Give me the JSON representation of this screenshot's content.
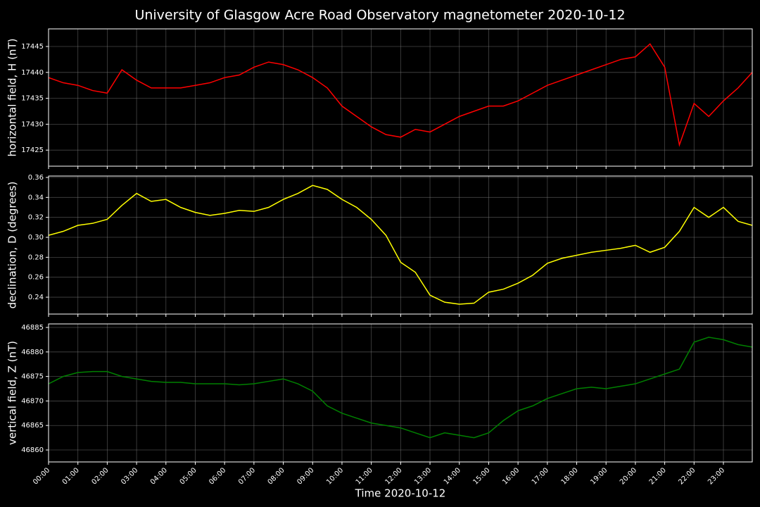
{
  "title": "University of Glasgow Acre Road Observatory magnetometer 2020-10-12",
  "chart_data": [
    {
      "type": "line",
      "ylabel": "horizontal field, H (nT)",
      "color": "#ff0000",
      "grid": true,
      "x": [
        "00:00",
        "00:30",
        "01:00",
        "01:30",
        "02:00",
        "02:30",
        "03:00",
        "03:30",
        "04:00",
        "04:30",
        "05:00",
        "05:30",
        "06:00",
        "06:30",
        "07:00",
        "07:30",
        "08:00",
        "08:30",
        "09:00",
        "09:30",
        "10:00",
        "10:30",
        "11:00",
        "11:30",
        "12:00",
        "12:30",
        "13:00",
        "13:30",
        "14:00",
        "14:30",
        "15:00",
        "15:30",
        "16:00",
        "16:30",
        "17:00",
        "17:30",
        "18:00",
        "18:30",
        "19:00",
        "19:30",
        "20:00",
        "20:30",
        "21:00",
        "21:30",
        "22:00",
        "22:30",
        "23:00",
        "23:30",
        "23:59"
      ],
      "values": [
        17439,
        17438,
        17437.5,
        17436.5,
        17436,
        17440.5,
        17438.5,
        17437,
        17437,
        17437,
        17437.5,
        17438,
        17439,
        17439.5,
        17441,
        17442,
        17441.5,
        17440.5,
        17439,
        17437,
        17433.5,
        17431.5,
        17429.5,
        17428,
        17427.5,
        17429,
        17428.5,
        17430,
        17431.5,
        17432.5,
        17433.5,
        17433.5,
        17434.5,
        17436,
        17437.5,
        17438.5,
        17439.5,
        17440.5,
        17441.5,
        17442.5,
        17443,
        17445.5,
        17441,
        17426,
        17434,
        17431.5,
        17434.5,
        17437,
        17440
      ],
      "ylim": [
        17421.9,
        17448.4
      ],
      "yticks": [
        17425,
        17430,
        17435,
        17440,
        17445
      ]
    },
    {
      "type": "line",
      "ylabel": "declination, D (degrees)",
      "color": "#ffff00",
      "grid": true,
      "x": [
        "00:00",
        "00:30",
        "01:00",
        "01:30",
        "02:00",
        "02:30",
        "03:00",
        "03:30",
        "04:00",
        "04:30",
        "05:00",
        "05:30",
        "06:00",
        "06:30",
        "07:00",
        "07:30",
        "08:00",
        "08:30",
        "09:00",
        "09:30",
        "10:00",
        "10:30",
        "11:00",
        "11:30",
        "12:00",
        "12:30",
        "13:00",
        "13:30",
        "14:00",
        "14:30",
        "15:00",
        "15:30",
        "16:00",
        "16:30",
        "17:00",
        "17:30",
        "18:00",
        "18:30",
        "19:00",
        "19:30",
        "20:00",
        "20:30",
        "21:00",
        "21:30",
        "22:00",
        "22:30",
        "23:00",
        "23:30",
        "23:59"
      ],
      "values": [
        0.302,
        0.306,
        0.312,
        0.314,
        0.318,
        0.332,
        0.344,
        0.336,
        0.338,
        0.33,
        0.325,
        0.322,
        0.324,
        0.327,
        0.326,
        0.33,
        0.338,
        0.344,
        0.352,
        0.348,
        0.338,
        0.33,
        0.318,
        0.302,
        0.275,
        0.265,
        0.242,
        0.235,
        0.233,
        0.234,
        0.245,
        0.248,
        0.254,
        0.262,
        0.274,
        0.279,
        0.282,
        0.285,
        0.287,
        0.289,
        0.292,
        0.285,
        0.29,
        0.306,
        0.33,
        0.32,
        0.33,
        0.316,
        0.312
      ],
      "ylim": [
        0.2231,
        0.3614
      ],
      "yticks": [
        0.24,
        0.26,
        0.28,
        {
          "value": 0.3,
          "label": "0.30"
        },
        0.32,
        0.34,
        0.36
      ]
    },
    {
      "type": "line",
      "ylabel": "vertical field, Z (nT)",
      "xlabel": "Time 2020-10-12",
      "color": "#008000",
      "grid": true,
      "x": [
        "00:00",
        "00:30",
        "01:00",
        "01:30",
        "02:00",
        "02:30",
        "03:00",
        "03:30",
        "04:00",
        "04:30",
        "05:00",
        "05:30",
        "06:00",
        "06:30",
        "07:00",
        "07:30",
        "08:00",
        "08:30",
        "09:00",
        "09:30",
        "10:00",
        "10:30",
        "11:00",
        "11:30",
        "12:00",
        "12:30",
        "13:00",
        "13:30",
        "14:00",
        "14:30",
        "15:00",
        "15:30",
        "16:00",
        "16:30",
        "17:00",
        "17:30",
        "18:00",
        "18:30",
        "19:00",
        "19:30",
        "20:00",
        "20:30",
        "21:00",
        "21:30",
        "22:00",
        "22:30",
        "23:00",
        "23:30",
        "23:59"
      ],
      "values": [
        46873.5,
        46875,
        46875.8,
        46876,
        46876,
        46875,
        46874.5,
        46874,
        46873.8,
        46873.8,
        46873.5,
        46873.5,
        46873.5,
        46873.3,
        46873.5,
        46874,
        46874.5,
        46873.5,
        46872,
        46869,
        46867.5,
        46866.5,
        46865.5,
        46865,
        46864.5,
        46863.5,
        46862.5,
        46863.5,
        46863,
        46862.5,
        46863.5,
        46866,
        46868,
        46869,
        46870.5,
        46871.5,
        46872.5,
        46872.8,
        46872.5,
        46873,
        46873.5,
        46874.5,
        46875.5,
        46876.5,
        46882,
        46883,
        46882.5,
        46881.5,
        46881
      ],
      "ylim": [
        46857.56,
        46885.72
      ],
      "yticks": [
        46860,
        46865,
        46870,
        46875,
        46880,
        46885
      ],
      "xlim": [
        "00:00",
        "23:59"
      ],
      "xticks": [
        "00:00",
        "01:00",
        "02:00",
        "03:00",
        "04:00",
        "05:00",
        "06:00",
        "07:00",
        "08:00",
        "09:00",
        "10:00",
        "11:00",
        "12:00",
        "13:00",
        "14:00",
        "15:00",
        "16:00",
        "17:00",
        "18:00",
        "19:00",
        "20:00",
        "21:00",
        "22:00",
        "23:00"
      ]
    }
  ]
}
